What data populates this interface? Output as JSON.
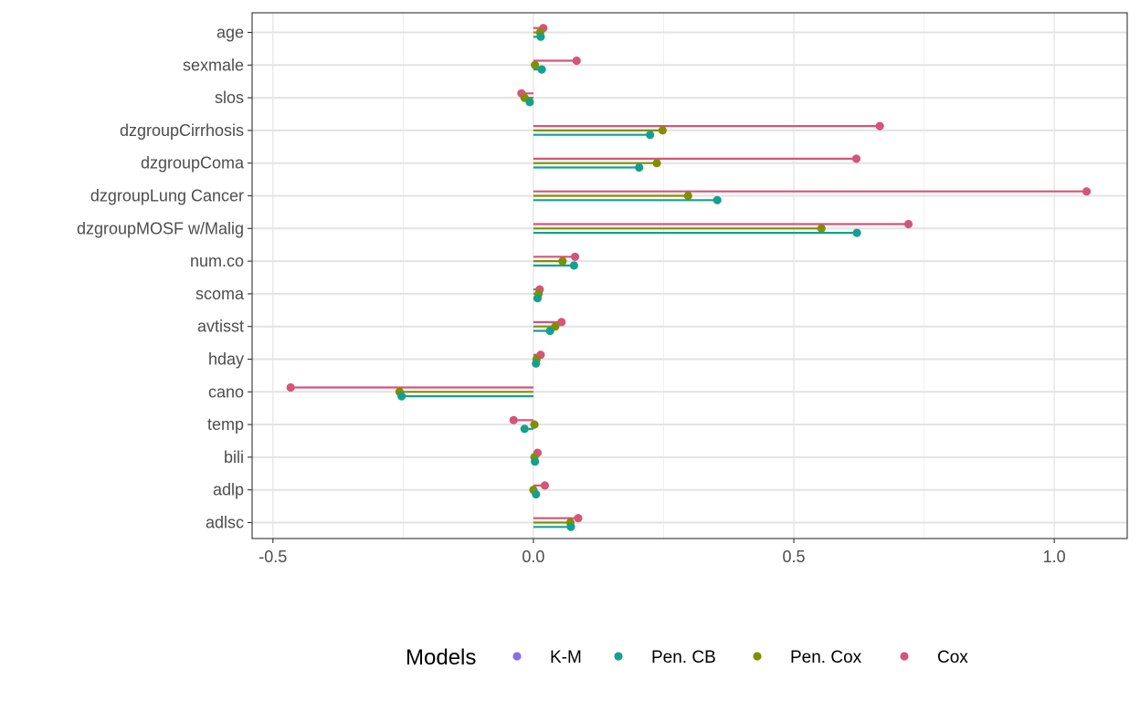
{
  "chart_data": {
    "type": "lollipop",
    "variables": [
      "age",
      "sexmale",
      "slos",
      "dzgroupCirrhosis",
      "dzgroupComa",
      "dzgroupLung Cancer",
      "dzgroupMOSF w/Malig",
      "num.co",
      "scoma",
      "avtisst",
      "hday",
      "cano",
      "temp",
      "bili",
      "adlp",
      "adlsc"
    ],
    "xlim": [
      -0.54,
      1.14
    ],
    "xticks": [
      -0.5,
      0.0,
      0.5,
      1.0
    ],
    "xtick_labels": [
      "-0.5",
      "0.0",
      "0.5",
      "1.0"
    ],
    "grid": true,
    "legend": {
      "title": "Models",
      "placement": "bottom",
      "entries": [
        "K-M",
        "Pen. CB",
        "Pen. Cox",
        "Cox"
      ]
    },
    "series": [
      {
        "name": "Cox",
        "color": "#d5547a",
        "values": [
          0.019,
          0.083,
          -0.023,
          0.665,
          0.62,
          1.062,
          0.72,
          0.08,
          0.012,
          0.054,
          0.014,
          -0.466,
          -0.038,
          0.008,
          0.022,
          0.086
        ]
      },
      {
        "name": "Pen. Cox",
        "color": "#7f8f00",
        "values": [
          0.013,
          0.003,
          -0.017,
          0.248,
          0.237,
          0.297,
          0.553,
          0.056,
          0.01,
          0.042,
          0.006,
          -0.257,
          0.002,
          0.002,
          0.0,
          0.071
        ]
      },
      {
        "name": "Pen. CB",
        "color": "#14a08f",
        "values": [
          0.014,
          0.016,
          -0.007,
          0.224,
          0.203,
          0.353,
          0.621,
          0.078,
          0.008,
          0.032,
          0.005,
          -0.253,
          -0.017,
          0.003,
          0.005,
          0.072
        ]
      },
      {
        "name": "K-M",
        "color": "#8b6fe0",
        "values": []
      }
    ]
  }
}
